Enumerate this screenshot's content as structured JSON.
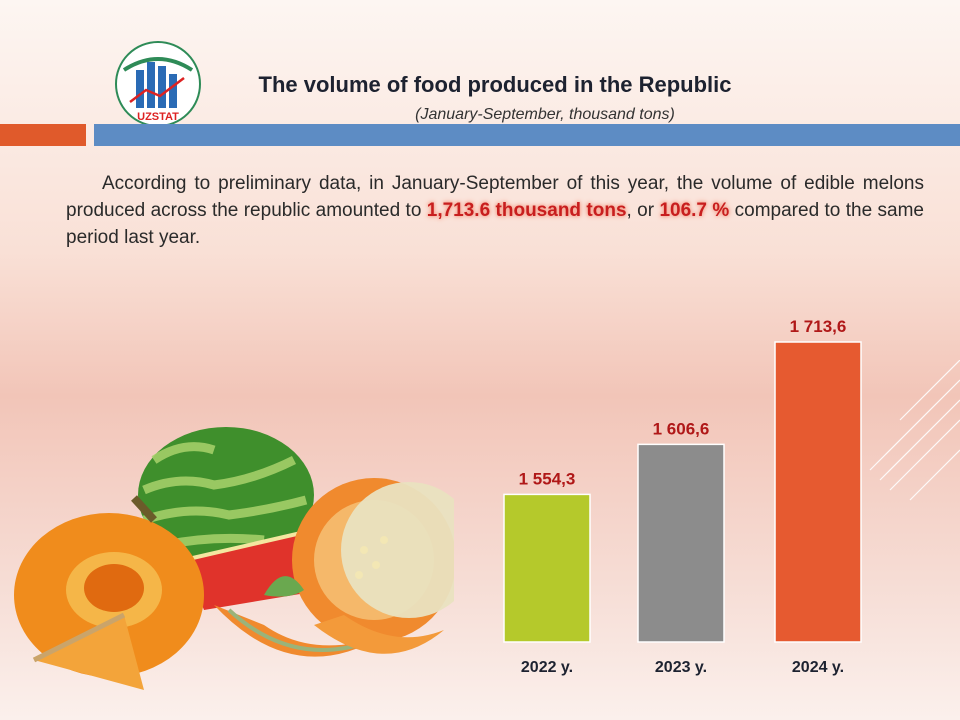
{
  "header": {
    "logo_text": "UZSTAT",
    "title": "The volume of food produced in the Republic",
    "subtitle": "(January-September, thousand tons)"
  },
  "summary": {
    "text_before": "According to preliminary data, in January-September of this year, the volume of edible melons produced across the republic amounted to ",
    "highlight_volume": "1,713.6 thousand tons",
    "text_middle": ", or ",
    "highlight_percent": "106.7 %",
    "text_after": " compared to the same period last year."
  },
  "colors": {
    "accent_orange": "#e05a2b",
    "accent_blue": "#5d8cc4",
    "highlight_red": "#c81e1e"
  },
  "chart_data": {
    "type": "bar",
    "title": "The volume of food produced in the Republic",
    "ylabel": "thousand tons",
    "categories": [
      "2022 y.",
      "2023 y.",
      "2024 y."
    ],
    "values": [
      1554.3,
      1606.6,
      1713.6
    ],
    "labels": [
      "1 554,3",
      "1 606,6",
      "1 713,6"
    ],
    "colors": [
      "#b5c92b",
      "#8c8c8c",
      "#e65a30"
    ]
  }
}
